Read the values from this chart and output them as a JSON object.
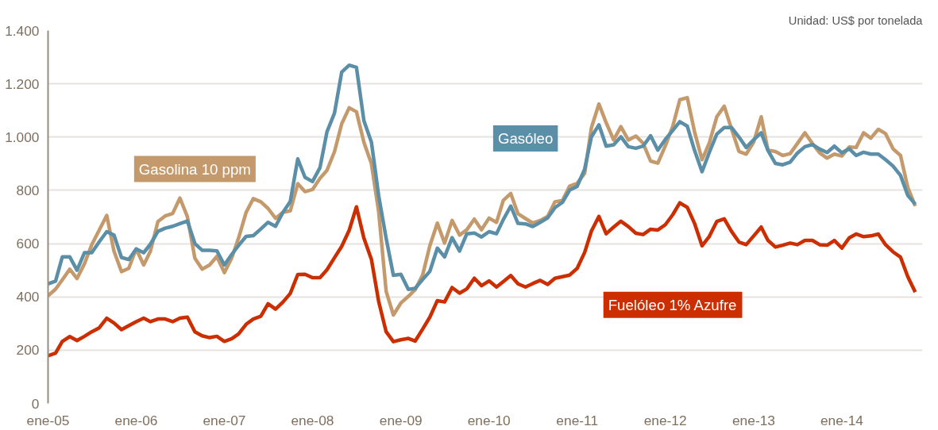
{
  "chart_data": {
    "type": "line",
    "annotations": [
      "Unidad: US$ por tonelada"
    ],
    "x": [
      "2005-01",
      "2005-02",
      "2005-03",
      "2005-04",
      "2005-05",
      "2005-06",
      "2005-07",
      "2005-08",
      "2005-09",
      "2005-10",
      "2005-11",
      "2005-12",
      "2006-01",
      "2006-02",
      "2006-03",
      "2006-04",
      "2006-05",
      "2006-06",
      "2006-07",
      "2006-08",
      "2006-09",
      "2006-10",
      "2006-11",
      "2006-12",
      "2007-01",
      "2007-02",
      "2007-03",
      "2007-04",
      "2007-05",
      "2007-06",
      "2007-07",
      "2007-08",
      "2007-09",
      "2007-10",
      "2007-11",
      "2007-12",
      "2008-01",
      "2008-02",
      "2008-03",
      "2008-04",
      "2008-05",
      "2008-06",
      "2008-07",
      "2008-08",
      "2008-09",
      "2008-10",
      "2008-11",
      "2008-12",
      "2009-01",
      "2009-02",
      "2009-03",
      "2009-04",
      "2009-05",
      "2009-06",
      "2009-07",
      "2009-08",
      "2009-09",
      "2009-10",
      "2009-11",
      "2009-12",
      "2010-01",
      "2010-02",
      "2010-03",
      "2010-04",
      "2010-05",
      "2010-06",
      "2010-07",
      "2010-08",
      "2010-09",
      "2010-10",
      "2010-11",
      "2010-12",
      "2011-01",
      "2011-02",
      "2011-03",
      "2011-04",
      "2011-05",
      "2011-06",
      "2011-07",
      "2011-08",
      "2011-09",
      "2011-10",
      "2011-11",
      "2011-12",
      "2012-01",
      "2012-02",
      "2012-03",
      "2012-04",
      "2012-05",
      "2012-06",
      "2012-07",
      "2012-08",
      "2012-09",
      "2012-10",
      "2012-11",
      "2012-12",
      "2013-01",
      "2013-02",
      "2013-03",
      "2013-04",
      "2013-05",
      "2013-06",
      "2013-07",
      "2013-08",
      "2013-09",
      "2013-10",
      "2013-11",
      "2013-12",
      "2014-01",
      "2014-02",
      "2014-03",
      "2014-04",
      "2014-05",
      "2014-06",
      "2014-07",
      "2014-08",
      "2014-09",
      "2014-10",
      "2014-11"
    ],
    "series": [
      {
        "name": "Gasolina 10 ppm",
        "color": "#c49a6c",
        "values": [
          404,
          429,
          464,
          504,
          469,
          525,
          596,
          651,
          706,
          572,
          495,
          507,
          580,
          520,
          572,
          683,
          704,
          713,
          771,
          701,
          545,
          504,
          520,
          552,
          491,
          547,
          621,
          717,
          769,
          757,
          732,
          695,
          718,
          723,
          825,
          795,
          803,
          845,
          875,
          945,
          1050,
          1110,
          1095,
          980,
          900,
          720,
          421,
          332,
          377,
          402,
          427,
          482,
          592,
          677,
          602,
          687,
          632,
          652,
          692,
          652,
          696,
          680,
          762,
          788,
          712,
          694,
          677,
          687,
          702,
          757,
          762,
          816,
          826,
          864,
          1035,
          1124,
          1054,
          989,
          1039,
          989,
          1004,
          977,
          910,
          902,
          967,
          1041,
          1140,
          1148,
          1020,
          915,
          977,
          1076,
          1116,
          1031,
          946,
          936,
          981,
          1076,
          951,
          946,
          931,
          938,
          976,
          1016,
          976,
          941,
          921,
          936,
          929,
          963,
          961,
          1016,
          996,
          1029,
          1013,
          956,
          931,
          811,
          741
        ]
      },
      {
        "name": "Gasóleo",
        "color": "#5b8fa8",
        "values": [
          449,
          459,
          550,
          550,
          500,
          566,
          566,
          607,
          645,
          632,
          548,
          540,
          580,
          566,
          598,
          646,
          658,
          665,
          675,
          685,
          600,
          575,
          575,
          573,
          520,
          560,
          593,
          627,
          630,
          655,
          680,
          665,
          718,
          758,
          918,
          849,
          833,
          885,
          1020,
          1090,
          1244,
          1270,
          1262,
          1061,
          981,
          780,
          620,
          481,
          485,
          428,
          432,
          465,
          496,
          583,
          550,
          622,
          572,
          637,
          640,
          625,
          645,
          637,
          690,
          741,
          676,
          674,
          664,
          680,
          697,
          735,
          755,
          801,
          815,
          880,
          1001,
          1046,
          966,
          971,
          1001,
          964,
          958,
          966,
          1005,
          951,
          991,
          1025,
          1058,
          1041,
          950,
          870,
          942,
          1011,
          1036,
          1036,
          1000,
          961,
          990,
          1016,
          950,
          901,
          896,
          906,
          940,
          964,
          972,
          955,
          942,
          966,
          941,
          956,
          931,
          943,
          936,
          936,
          915,
          891,
          856,
          781,
          748
        ]
      },
      {
        "name": "Fuelóleo 1% Azufre",
        "color": "#cc2e00",
        "values": [
          179,
          189,
          233,
          251,
          236,
          252,
          269,
          284,
          320,
          302,
          277,
          292,
          307,
          320,
          307,
          317,
          317,
          307,
          320,
          324,
          269,
          254,
          247,
          252,
          233,
          243,
          261,
          297,
          317,
          327,
          374,
          354,
          381,
          413,
          484,
          485,
          472,
          472,
          502,
          547,
          590,
          650,
          738,
          620,
          541,
          383,
          269,
          232,
          239,
          244,
          234,
          279,
          324,
          386,
          381,
          435,
          414,
          430,
          470,
          442,
          460,
          437,
          457,
          480,
          449,
          437,
          450,
          462,
          447,
          470,
          476,
          482,
          507,
          567,
          647,
          702,
          637,
          662,
          684,
          664,
          639,
          634,
          654,
          651,
          671,
          709,
          753,
          736,
          676,
          592,
          627,
          683,
          693,
          646,
          606,
          596,
          629,
          662,
          612,
          587,
          594,
          602,
          596,
          612,
          612,
          596,
          594,
          612,
          583,
          622,
          636,
          626,
          629,
          636,
          596,
          569,
          549,
          476,
          418
        ]
      }
    ],
    "xlim": [
      "2005-01",
      "2014-12"
    ],
    "xticks": [
      {
        "value": "2005-01",
        "label": "ene-05"
      },
      {
        "value": "2006-01",
        "label": "ene-06"
      },
      {
        "value": "2007-01",
        "label": "ene-07"
      },
      {
        "value": "2008-01",
        "label": "ene-08"
      },
      {
        "value": "2009-01",
        "label": "ene-09"
      },
      {
        "value": "2010-01",
        "label": "ene-10"
      },
      {
        "value": "2011-01",
        "label": "ene-11"
      },
      {
        "value": "2012-01",
        "label": "ene-12"
      },
      {
        "value": "2013-01",
        "label": "ene-13"
      },
      {
        "value": "2014-01",
        "label": "ene-14"
      }
    ],
    "ylim": [
      0,
      1400
    ],
    "yticks": [
      0,
      200,
      400,
      600,
      800,
      {
        "value": 1000,
        "label": "1.000"
      },
      {
        "value": 1200,
        "label": "1.200"
      },
      {
        "value": 1400,
        "label": "1.400"
      }
    ],
    "grid": "y",
    "line_style": "solid",
    "marker": "none"
  }
}
